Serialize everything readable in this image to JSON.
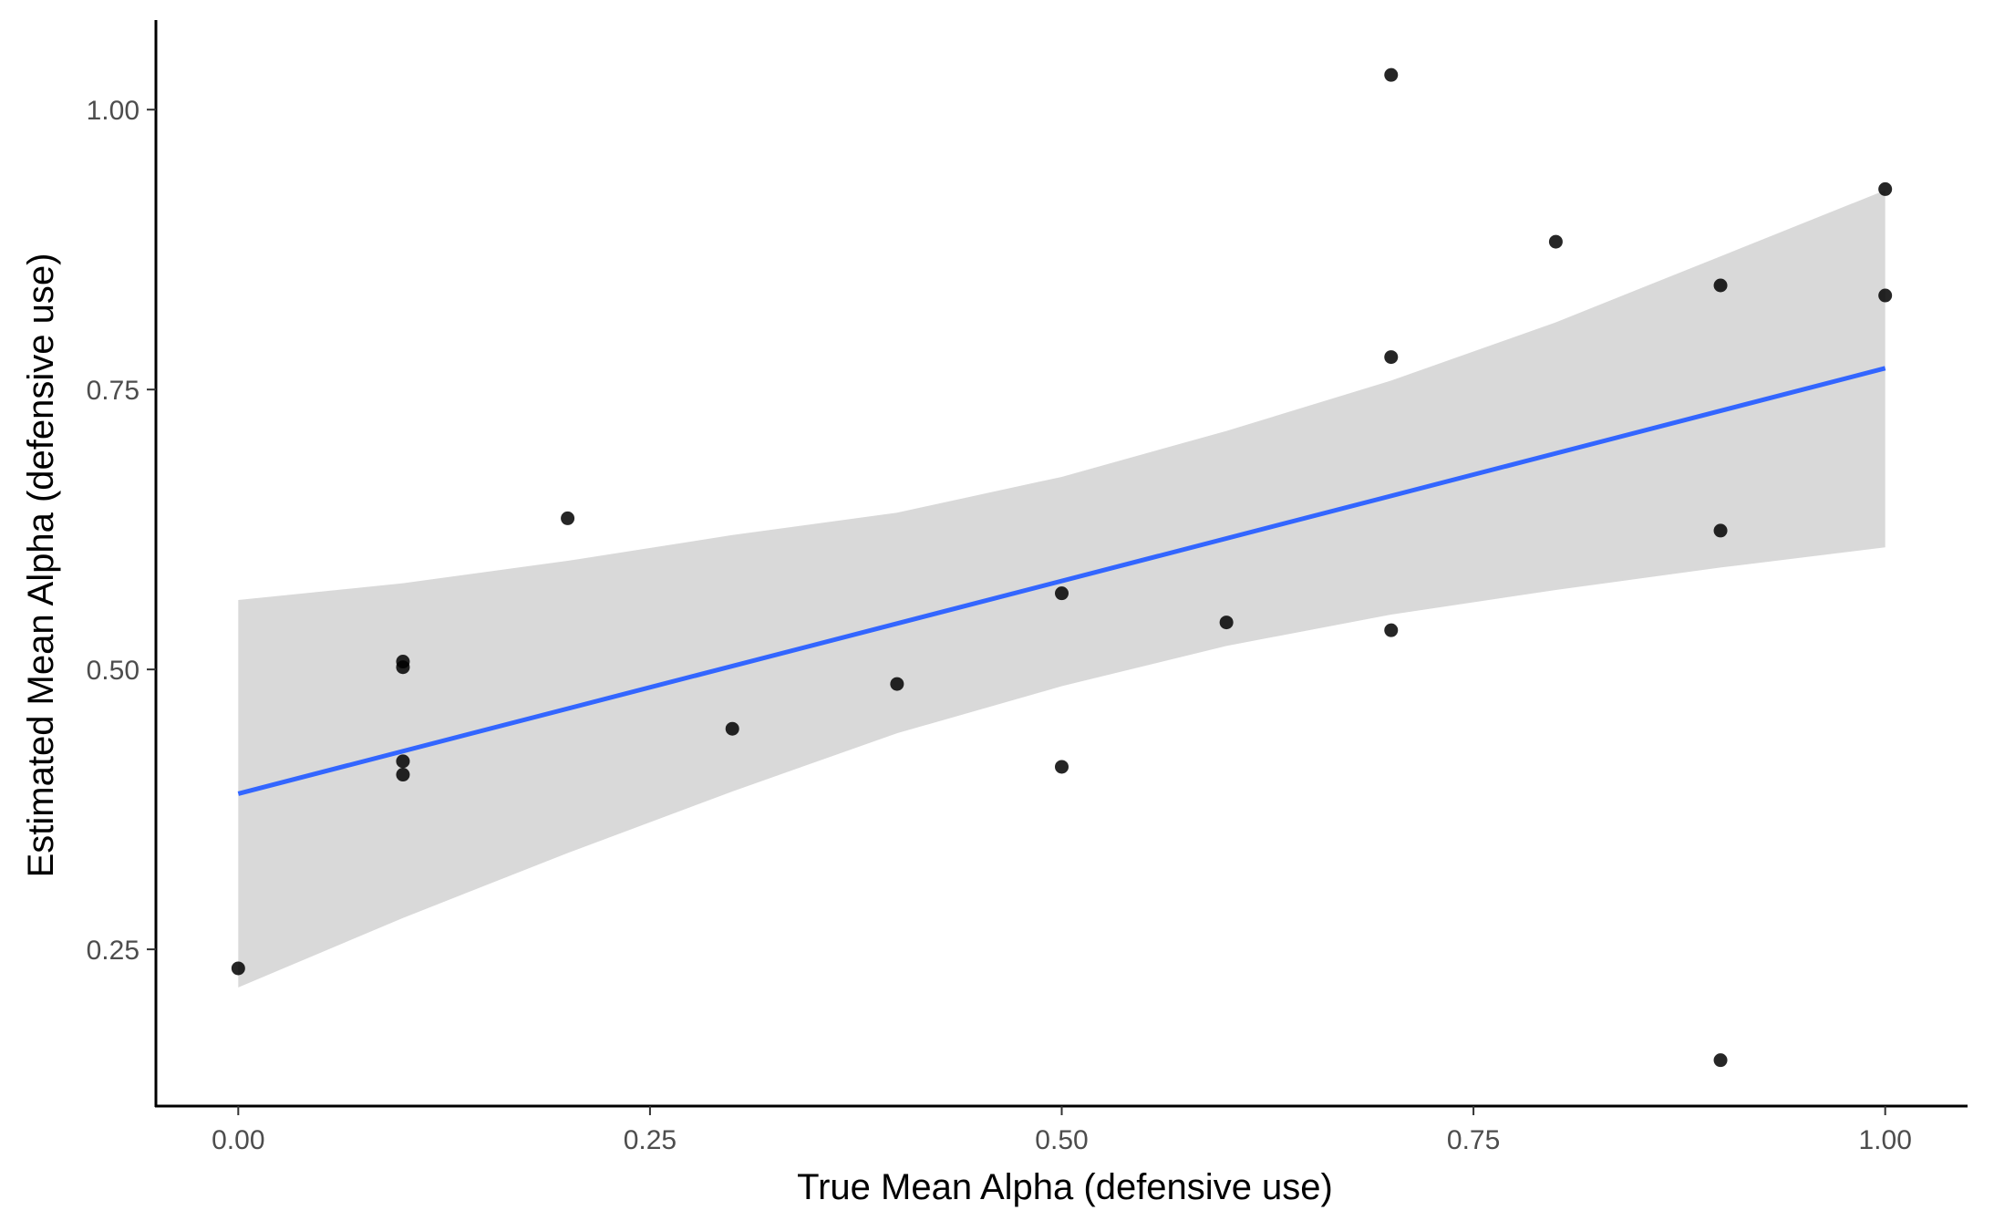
{
  "chart_data": {
    "type": "scatter",
    "title": "",
    "xlabel": "True Mean Alpha (defensive use)",
    "ylabel": "Estimated Mean Alpha (defensive use)",
    "xlim": [
      -0.05,
      1.05
    ],
    "ylim": [
      0.11,
      1.08
    ],
    "x_ticks": [
      0.0,
      0.25,
      0.5,
      0.75,
      1.0
    ],
    "x_tick_labels": [
      "0.00",
      "0.25",
      "0.50",
      "0.75",
      "1.00"
    ],
    "y_ticks": [
      0.25,
      0.5,
      0.75,
      1.0
    ],
    "y_tick_labels": [
      "0.25",
      "0.50",
      "0.75",
      "1.00"
    ],
    "grid": false,
    "points": [
      {
        "x": 0.0,
        "y": 0.233
      },
      {
        "x": 0.1,
        "y": 0.507
      },
      {
        "x": 0.1,
        "y": 0.502
      },
      {
        "x": 0.1,
        "y": 0.418
      },
      {
        "x": 0.1,
        "y": 0.406
      },
      {
        "x": 0.2,
        "y": 0.635
      },
      {
        "x": 0.3,
        "y": 0.447
      },
      {
        "x": 0.4,
        "y": 0.487
      },
      {
        "x": 0.5,
        "y": 0.568
      },
      {
        "x": 0.5,
        "y": 0.413
      },
      {
        "x": 0.6,
        "y": 0.542
      },
      {
        "x": 0.7,
        "y": 1.031
      },
      {
        "x": 0.7,
        "y": 0.779
      },
      {
        "x": 0.7,
        "y": 0.535
      },
      {
        "x": 0.8,
        "y": 0.882
      },
      {
        "x": 0.9,
        "y": 0.843
      },
      {
        "x": 0.9,
        "y": 0.624
      },
      {
        "x": 0.9,
        "y": 0.151
      },
      {
        "x": 1.0,
        "y": 0.929
      },
      {
        "x": 1.0,
        "y": 0.834
      }
    ],
    "trend_line": {
      "method": "linear",
      "x": [
        0.0,
        1.0
      ],
      "y": [
        0.389,
        0.769
      ]
    },
    "confidence_band": {
      "x": [
        0.0,
        0.1,
        0.2,
        0.3,
        0.4,
        0.5,
        0.6,
        0.7,
        0.8,
        0.9,
        1.0
      ],
      "lower": [
        0.216,
        0.278,
        0.336,
        0.391,
        0.443,
        0.485,
        0.521,
        0.549,
        0.571,
        0.591,
        0.609
      ],
      "upper": [
        0.562,
        0.577,
        0.597,
        0.62,
        0.64,
        0.672,
        0.713,
        0.758,
        0.81,
        0.869,
        0.928
      ]
    },
    "colors": {
      "point": "#000000",
      "trend_line": "#3366FF",
      "band": "#d9d9d9",
      "axis": "#000000",
      "tick_label": "#4d4d4d"
    }
  }
}
